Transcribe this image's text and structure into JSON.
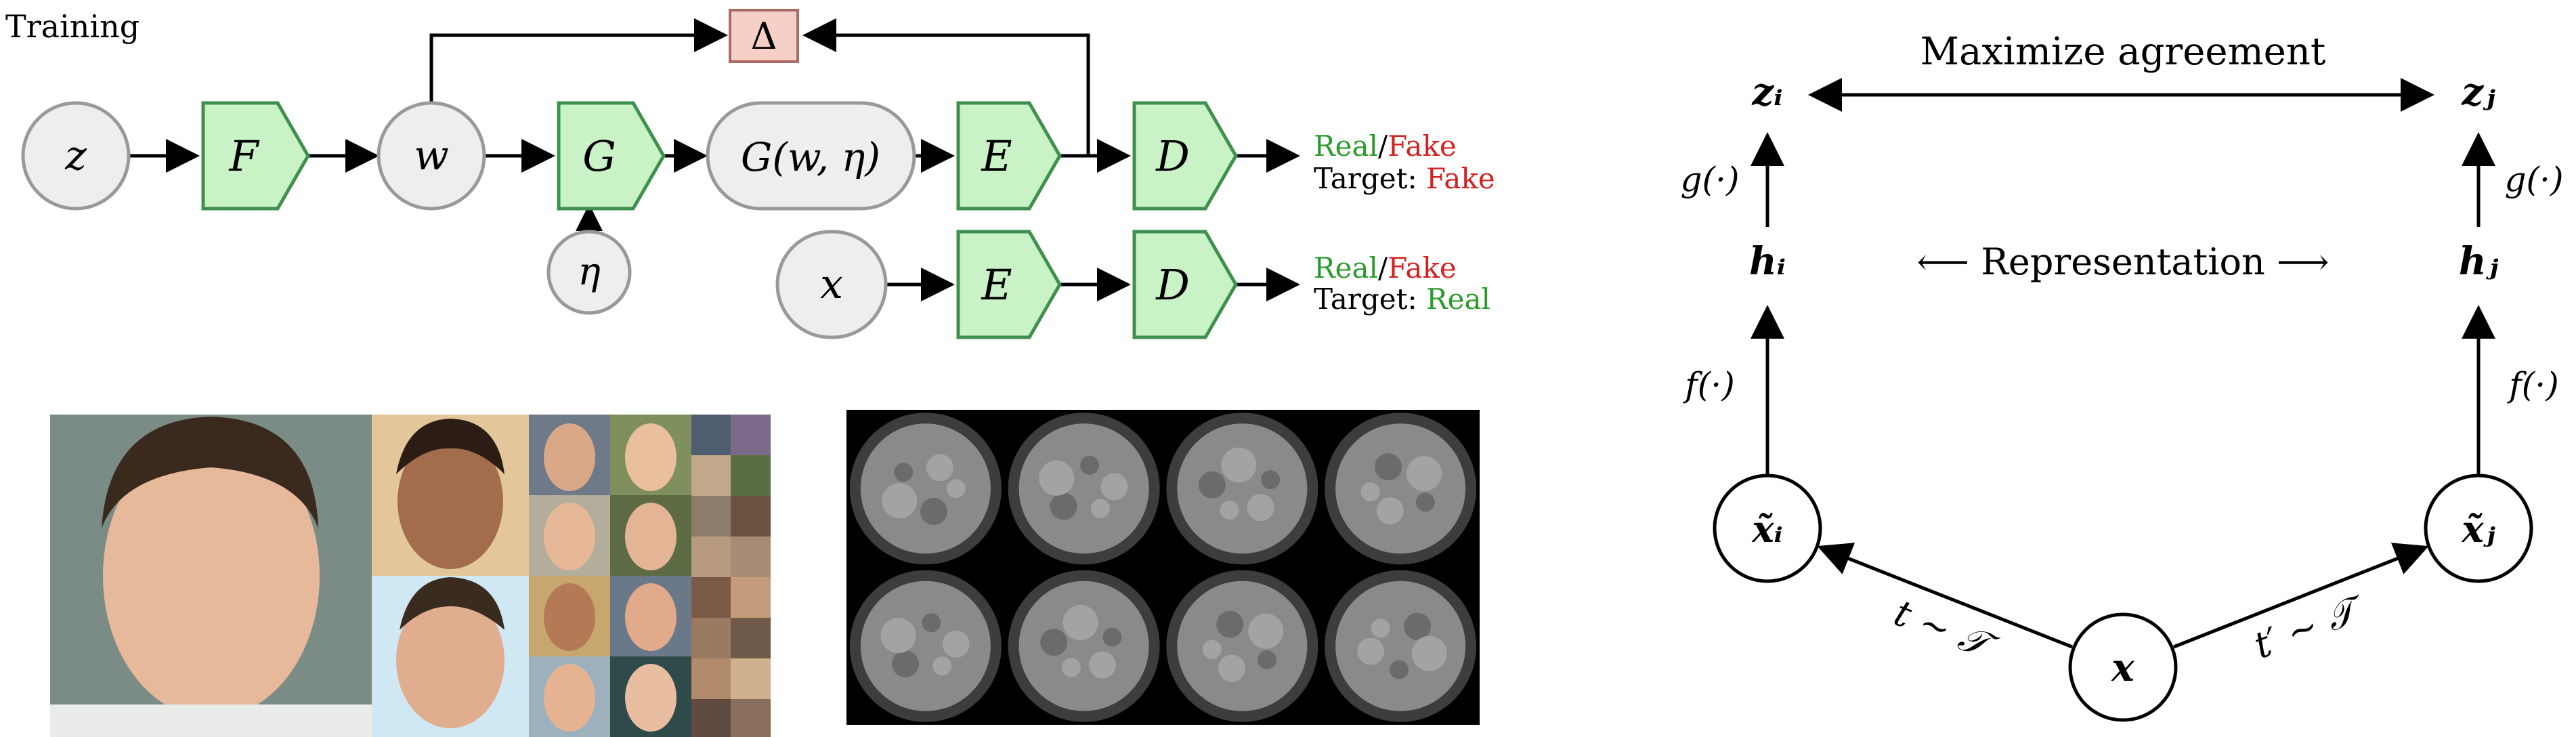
{
  "panel_a": {
    "corner_label": "Training",
    "nodes": {
      "z": "z",
      "F": "F",
      "w": "w",
      "G": "G",
      "Gwn": "G(w, η)",
      "E_top": "E",
      "D_top": "D",
      "eta": "η",
      "x": "x",
      "E_bottom": "E",
      "D_bottom": "D",
      "delta": "Δ"
    },
    "outputs": {
      "top": {
        "real": "Real",
        "slash": "/",
        "fake": "Fake",
        "target_label": "Target: ",
        "target_value": "Fake"
      },
      "bottom": {
        "real": "Real",
        "slash": "/",
        "fake": "Fake",
        "target_label": "Target: ",
        "target_value": "Real"
      }
    },
    "colors": {
      "block_fill": "#c9f2c7",
      "block_stroke": "#3f8f4f",
      "node_fill": "#eeeeee",
      "node_stroke": "#999999",
      "delta_fill": "#f6cfc6",
      "real": "#2a9a2a",
      "fake": "#d42020"
    }
  },
  "panel_b": {
    "title": "Maximize agreement",
    "representation": "⟵ Representation ⟶",
    "z_i": "zᵢ",
    "z_j": "zⱼ",
    "h_i": "hᵢ",
    "h_j": "hⱼ",
    "x_i": "x̃ᵢ",
    "x_j": "x̃ⱼ",
    "x": "x",
    "g_left": "g(·)",
    "g_right": "g(·)",
    "f_left": "f(·)",
    "f_right": "f(·)",
    "t_left": "t ∼ 𝒯",
    "t_right": "t′ ∼ 𝒯"
  },
  "images": {
    "faces": "generated-face-samples",
    "suns": "solar-disk-samples"
  }
}
